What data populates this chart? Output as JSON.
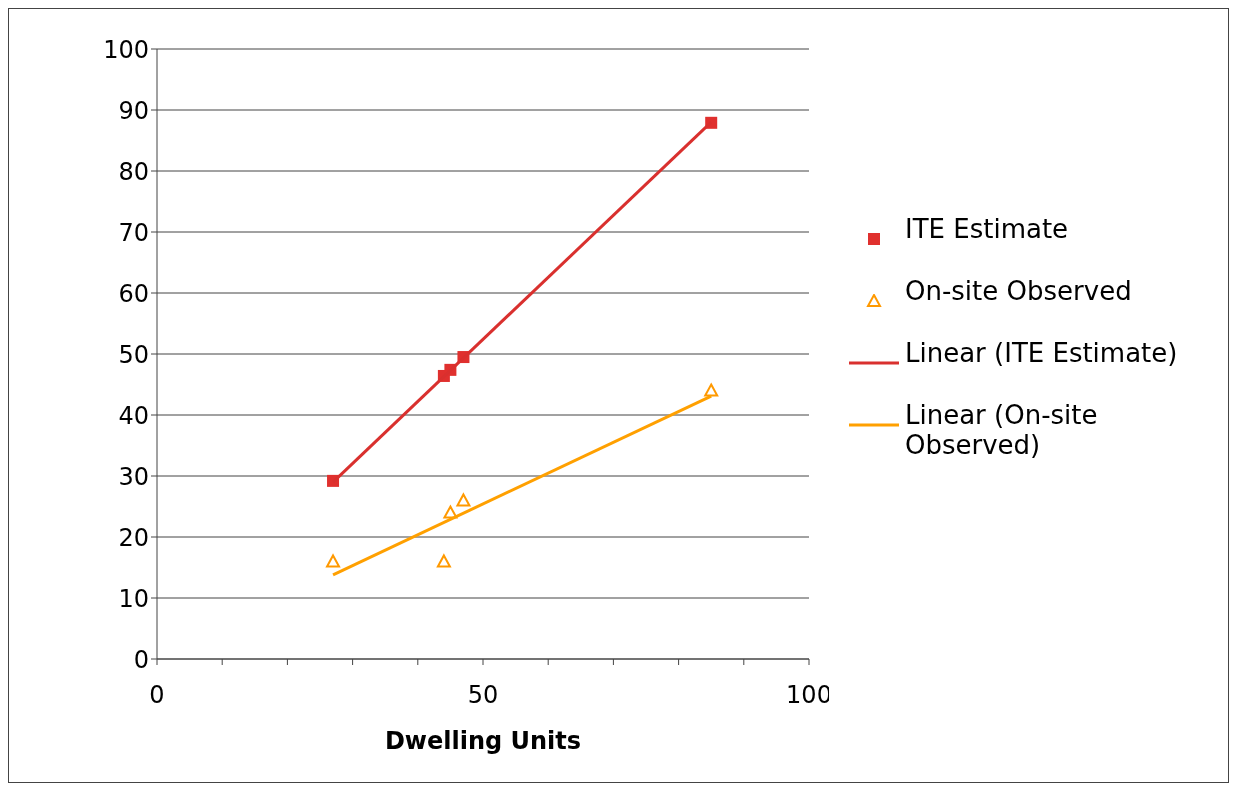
{
  "chart_data": {
    "type": "scatter",
    "xlabel": "Dwelling Units",
    "xlim": [
      0,
      100
    ],
    "xticks": [
      0,
      {
        "value": 10,
        "label": null
      },
      {
        "value": 20,
        "label": null
      },
      {
        "value": 30,
        "label": null
      },
      {
        "value": 40,
        "label": null
      },
      50,
      {
        "value": 60,
        "label": null
      },
      {
        "value": 70,
        "label": null
      },
      {
        "value": 80,
        "label": null
      },
      {
        "value": 90,
        "label": null
      },
      100
    ],
    "ylim": [
      0,
      100
    ],
    "yticks": [
      0,
      10,
      20,
      30,
      40,
      50,
      60,
      70,
      80,
      90,
      100
    ],
    "grid": "y",
    "legend": "right",
    "series": [
      {
        "name": "ITE Estimate",
        "marker": "square",
        "color": "#e0302e",
        "x": [
          27,
          44,
          45,
          47,
          85
        ],
        "values": [
          29.2,
          46.4,
          47.4,
          49.5,
          87.9
        ]
      },
      {
        "name": "On-site Observed",
        "marker": "triangle",
        "color": "#ff9900",
        "x": [
          27,
          44,
          45,
          47,
          85
        ],
        "values": [
          16,
          16,
          24,
          26,
          44
        ]
      },
      {
        "name": "Linear (ITE Estimate)",
        "type": "line",
        "marker": "none",
        "color": "#d9302e",
        "x": [
          27,
          85
        ],
        "values": [
          29,
          88
        ]
      },
      {
        "name": "Linear (On-site Observed)",
        "type": "line",
        "marker": "none",
        "color": "#ffa000",
        "x": [
          27,
          85
        ],
        "values": [
          13.8,
          43.1
        ]
      }
    ]
  }
}
